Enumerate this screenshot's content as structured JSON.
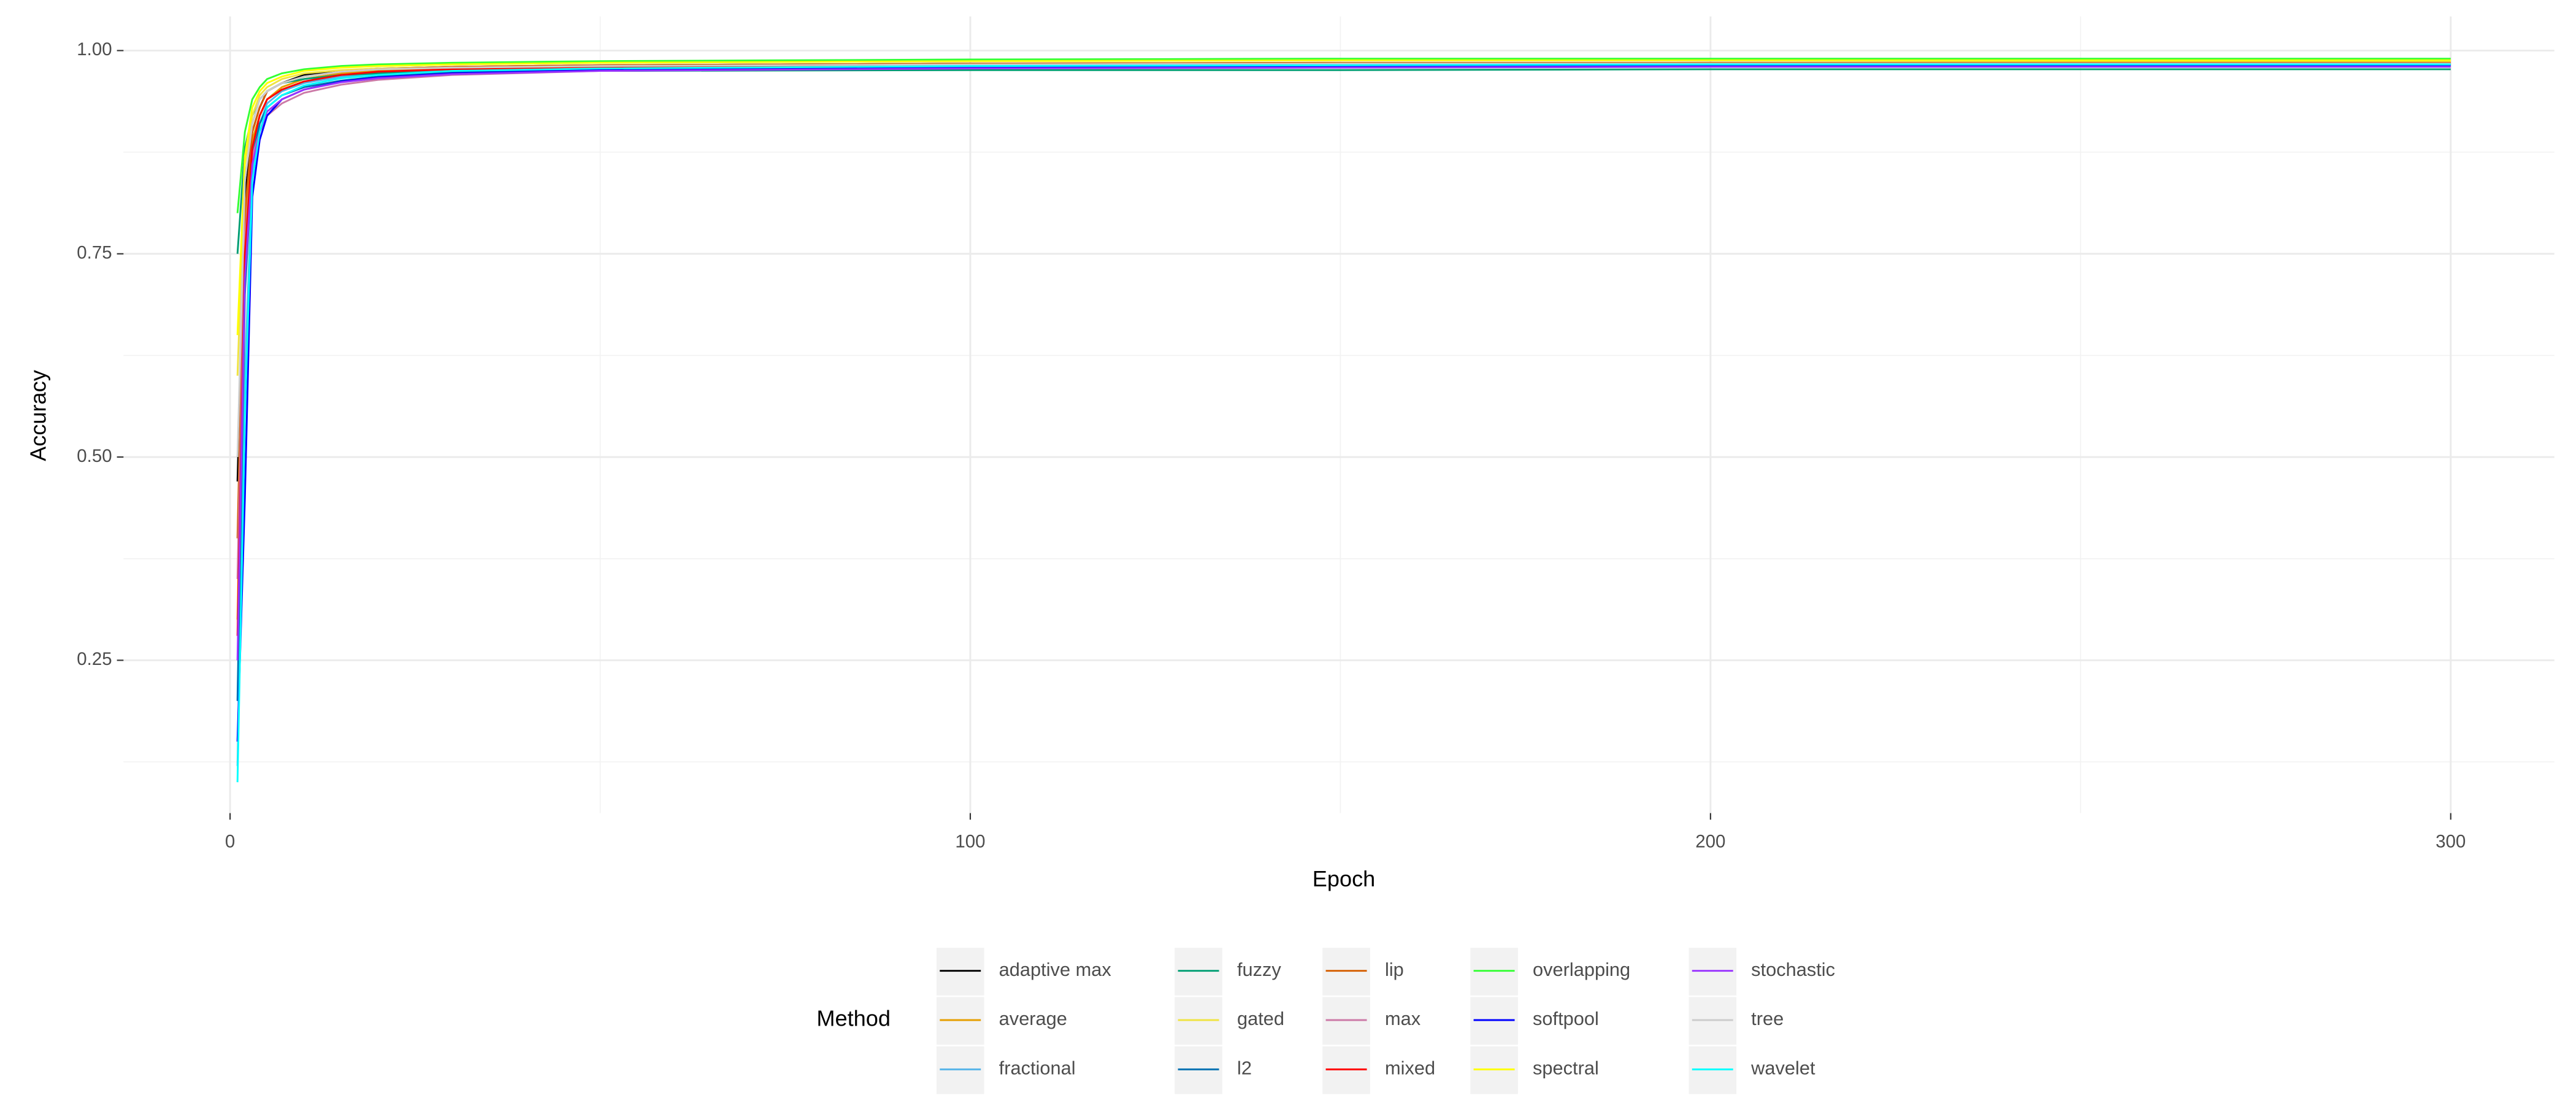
{
  "chart_data": {
    "type": "line",
    "x_label": "Epoch",
    "y_label": "Accuracy",
    "legend_title": "Method",
    "x": [
      1,
      2,
      3,
      4,
      5,
      7,
      10,
      15,
      20,
      30,
      50,
      100,
      150,
      200,
      250,
      300
    ],
    "xlim": [
      -14.4,
      314
    ],
    "ylim": [
      0.062,
      1.042
    ],
    "xticks": [
      0,
      100,
      200,
      300
    ],
    "yticks": [
      {
        "value": 0.25,
        "label": "0.25"
      },
      {
        "value": 0.5,
        "label": "0.50"
      },
      {
        "value": 0.75,
        "label": "0.75"
      },
      {
        "value": 1.0,
        "label": "1.00"
      }
    ],
    "grid": true,
    "minor_grid": true,
    "legend_position": "bottom",
    "series": [
      {
        "name": "adaptive max",
        "color": "#000000",
        "values": [
          0.47,
          0.82,
          0.9,
          0.93,
          0.95,
          0.96,
          0.97,
          0.975,
          0.978,
          0.98,
          0.982,
          0.984,
          0.984,
          0.985,
          0.985,
          0.985
        ]
      },
      {
        "name": "average",
        "color": "#E69F00",
        "values": [
          0.3,
          0.78,
          0.89,
          0.92,
          0.94,
          0.955,
          0.965,
          0.972,
          0.975,
          0.978,
          0.98,
          0.983,
          0.984,
          0.984,
          0.985,
          0.985
        ]
      },
      {
        "name": "fractional",
        "color": "#56B4E9",
        "values": [
          0.12,
          0.6,
          0.85,
          0.91,
          0.935,
          0.95,
          0.96,
          0.968,
          0.972,
          0.976,
          0.979,
          0.982,
          0.983,
          0.983,
          0.984,
          0.984
        ]
      },
      {
        "name": "fuzzy",
        "color": "#009E73",
        "values": [
          0.75,
          0.88,
          0.92,
          0.94,
          0.95,
          0.96,
          0.965,
          0.97,
          0.972,
          0.974,
          0.975,
          0.976,
          0.976,
          0.977,
          0.977,
          0.977
        ]
      },
      {
        "name": "gated",
        "color": "#F0E442",
        "values": [
          0.6,
          0.86,
          0.92,
          0.945,
          0.955,
          0.965,
          0.972,
          0.976,
          0.978,
          0.98,
          0.982,
          0.984,
          0.985,
          0.985,
          0.986,
          0.986
        ]
      },
      {
        "name": "l2",
        "color": "#0072B2",
        "values": [
          0.2,
          0.7,
          0.87,
          0.91,
          0.93,
          0.945,
          0.955,
          0.963,
          0.968,
          0.973,
          0.976,
          0.98,
          0.981,
          0.982,
          0.982,
          0.982
        ]
      },
      {
        "name": "lip",
        "color": "#D55E00",
        "values": [
          0.4,
          0.8,
          0.9,
          0.93,
          0.95,
          0.96,
          0.968,
          0.974,
          0.977,
          0.98,
          0.982,
          0.984,
          0.985,
          0.985,
          0.985,
          0.985
        ]
      },
      {
        "name": "max",
        "color": "#CC79A7",
        "values": [
          0.35,
          0.77,
          0.87,
          0.9,
          0.92,
          0.935,
          0.948,
          0.958,
          0.964,
          0.97,
          0.975,
          0.979,
          0.98,
          0.981,
          0.981,
          0.981
        ]
      },
      {
        "name": "mixed",
        "color": "#FF0000",
        "values": [
          0.28,
          0.75,
          0.88,
          0.92,
          0.94,
          0.952,
          0.962,
          0.97,
          0.974,
          0.977,
          0.98,
          0.982,
          0.983,
          0.983,
          0.984,
          0.984
        ]
      },
      {
        "name": "overlapping",
        "color": "#33FF33",
        "values": [
          0.8,
          0.9,
          0.94,
          0.955,
          0.965,
          0.972,
          0.977,
          0.981,
          0.983,
          0.985,
          0.987,
          0.989,
          0.99,
          0.99,
          0.99,
          0.99
        ]
      },
      {
        "name": "softpool",
        "color": "#0000FF",
        "values": [
          0.15,
          0.45,
          0.82,
          0.89,
          0.92,
          0.94,
          0.952,
          0.962,
          0.967,
          0.972,
          0.976,
          0.98,
          0.981,
          0.982,
          0.982,
          0.982
        ]
      },
      {
        "name": "spectral",
        "color": "#FFFF00",
        "values": [
          0.65,
          0.87,
          0.93,
          0.95,
          0.96,
          0.968,
          0.975,
          0.979,
          0.981,
          0.983,
          0.985,
          0.987,
          0.988,
          0.988,
          0.988,
          0.988
        ]
      },
      {
        "name": "stochastic",
        "color": "#9933FF",
        "values": [
          0.25,
          0.72,
          0.86,
          0.9,
          0.925,
          0.94,
          0.952,
          0.961,
          0.966,
          0.971,
          0.975,
          0.978,
          0.979,
          0.98,
          0.98,
          0.98
        ]
      },
      {
        "name": "tree",
        "color": "#CCCCCC",
        "values": [
          0.5,
          0.84,
          0.91,
          0.94,
          0.95,
          0.96,
          0.968,
          0.974,
          0.977,
          0.979,
          0.981,
          0.983,
          0.984,
          0.984,
          0.984,
          0.984
        ]
      },
      {
        "name": "wavelet",
        "color": "#00FFFF",
        "values": [
          0.1,
          0.55,
          0.84,
          0.9,
          0.93,
          0.945,
          0.957,
          0.966,
          0.97,
          0.975,
          0.978,
          0.981,
          0.982,
          0.983,
          0.983,
          0.983
        ]
      }
    ]
  }
}
